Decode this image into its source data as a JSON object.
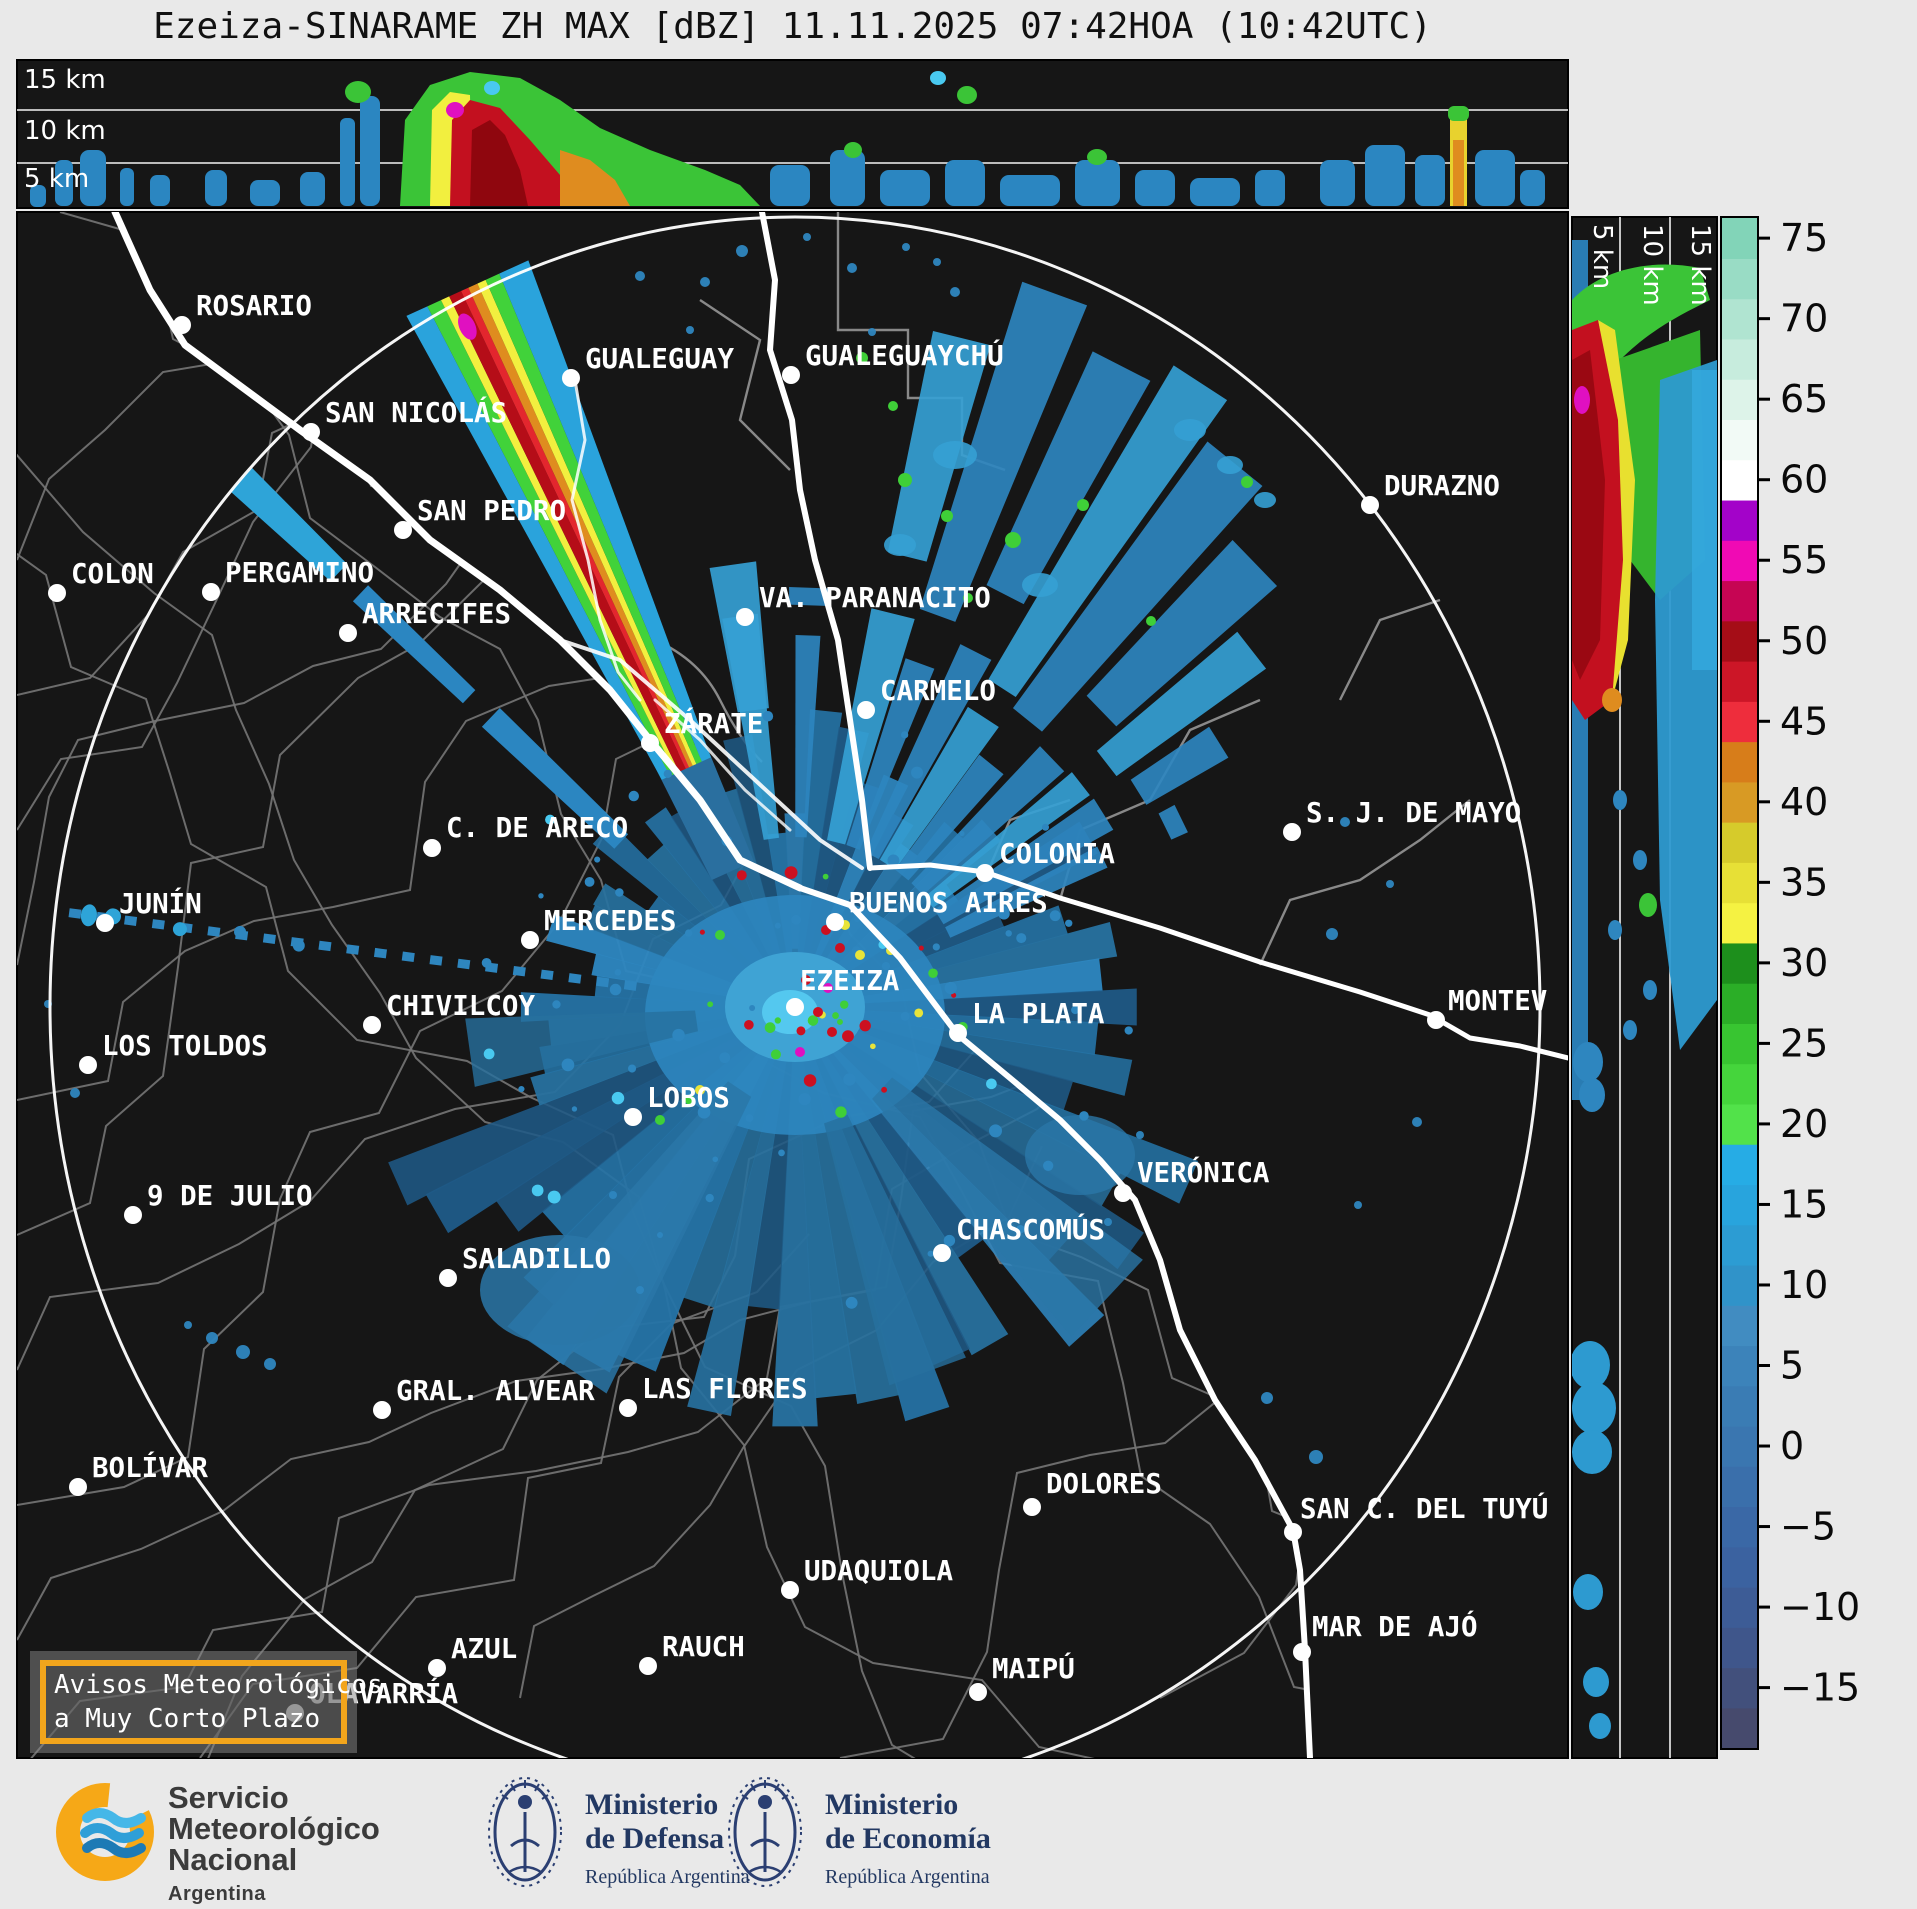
{
  "title": "Ezeiza-SINARAME ZH MAX [dBZ] 11.11.2025 07:42HOA (10:42UTC)",
  "top_panel": {
    "height_labels": [
      "15 km",
      "10 km",
      "5 km"
    ]
  },
  "right_panel": {
    "height_labels": [
      "5 km",
      "10 km",
      "15 km"
    ]
  },
  "map": {
    "radar_site": "EZEIZA",
    "cities": [
      {
        "name": "ROSARIO",
        "dot": [
          182,
          325
        ],
        "label": [
          196,
          293
        ]
      },
      {
        "name": "SAN NICOLÁS",
        "dot": [
          311,
          432
        ],
        "label": [
          325,
          400
        ]
      },
      {
        "name": "GUALEGUAY",
        "dot": [
          571,
          378
        ],
        "label": [
          585,
          346
        ]
      },
      {
        "name": "GUALEGUAYCHÚ",
        "dot": [
          791,
          375
        ],
        "label": [
          805,
          343
        ]
      },
      {
        "name": "SAN PEDRO",
        "dot": [
          403,
          530
        ],
        "label": [
          417,
          498
        ]
      },
      {
        "name": "COLON",
        "dot": [
          57,
          593
        ],
        "label": [
          71,
          561
        ]
      },
      {
        "name": "PERGAMINO",
        "dot": [
          211,
          592
        ],
        "label": [
          225,
          560
        ]
      },
      {
        "name": "ARRECIFES",
        "dot": [
          348,
          633
        ],
        "label": [
          362,
          601
        ]
      },
      {
        "name": "VA. PARANACITO",
        "dot": [
          745,
          617
        ],
        "label": [
          759,
          585
        ]
      },
      {
        "name": "DURAZNO",
        "dot": [
          1370,
          505
        ],
        "label": [
          1384,
          473
        ]
      },
      {
        "name": "CARMELO",
        "dot": [
          866,
          710
        ],
        "label": [
          880,
          678
        ]
      },
      {
        "name": "ZÁRATE",
        "dot": [
          650,
          743
        ],
        "label": [
          664,
          711
        ]
      },
      {
        "name": "C. DE ARECO",
        "dot": [
          432,
          848
        ],
        "label": [
          446,
          815
        ]
      },
      {
        "name": "JUNÍN",
        "dot": [
          105,
          923
        ],
        "label": [
          119,
          891
        ]
      },
      {
        "name": "MERCEDES",
        "dot": [
          530,
          940
        ],
        "label": [
          544,
          908
        ]
      },
      {
        "name": "CHIVILCOY",
        "dot": [
          372,
          1025
        ],
        "label": [
          386,
          993
        ]
      },
      {
        "name": "LOS TOLDOS",
        "dot": [
          88,
          1065
        ],
        "label": [
          102,
          1033
        ]
      },
      {
        "name": "COLONIA",
        "dot": [
          985,
          873
        ],
        "label": [
          999,
          841
        ]
      },
      {
        "name": "BUENOS AIRES",
        "dot": [
          835,
          922
        ],
        "label": [
          849,
          890
        ]
      },
      {
        "name": "EZEIZA",
        "dot": [
          795,
          1007
        ],
        "label": [
          800,
          968
        ]
      },
      {
        "name": "LA PLATA",
        "dot": [
          958,
          1033
        ],
        "label": [
          972,
          1001
        ]
      },
      {
        "name": "LOBOS",
        "dot": [
          633,
          1117
        ],
        "label": [
          647,
          1085
        ]
      },
      {
        "name": "S. J. DE MAYO",
        "dot": [
          1292,
          832
        ],
        "label": [
          1306,
          800
        ]
      },
      {
        "name": "MONTEV",
        "dot": [
          1436,
          1020
        ],
        "label": [
          1448,
          988
        ]
      },
      {
        "name": "VERÓNICA",
        "dot": [
          1123,
          1193
        ],
        "label": [
          1137,
          1160
        ]
      },
      {
        "name": "CHASCOMÚS",
        "dot": [
          942,
          1253
        ],
        "label": [
          956,
          1217
        ]
      },
      {
        "name": "9 DE JULIO",
        "dot": [
          133,
          1215
        ],
        "label": [
          147,
          1183
        ]
      },
      {
        "name": "SALADILLO",
        "dot": [
          448,
          1278
        ],
        "label": [
          462,
          1246
        ]
      },
      {
        "name": "GRAL. ALVEAR",
        "dot": [
          382,
          1410
        ],
        "label": [
          396,
          1378
        ]
      },
      {
        "name": "LAS FLORES",
        "dot": [
          628,
          1408
        ],
        "label": [
          642,
          1376
        ]
      },
      {
        "name": "BOLÍVAR",
        "dot": [
          78,
          1487
        ],
        "label": [
          92,
          1455
        ]
      },
      {
        "name": "DOLORES",
        "dot": [
          1032,
          1507
        ],
        "label": [
          1046,
          1471
        ]
      },
      {
        "name": "UDAQUIOLA",
        "dot": [
          790,
          1590
        ],
        "label": [
          804,
          1558
        ]
      },
      {
        "name": "AZUL",
        "dot": [
          437,
          1668
        ],
        "label": [
          451,
          1636
        ]
      },
      {
        "name": "RAUCH",
        "dot": [
          648,
          1666
        ],
        "label": [
          662,
          1634
        ]
      },
      {
        "name": "MAIPÚ",
        "dot": [
          978,
          1692
        ],
        "label": [
          992,
          1656
        ]
      },
      {
        "name": "OLAVARRÍA",
        "dot": [
          295,
          1713
        ],
        "label": [
          309,
          1681
        ]
      },
      {
        "name": "SAN C. DEL TUYÚ",
        "dot": [
          1293,
          1532
        ],
        "label": [
          1300,
          1496
        ]
      },
      {
        "name": "MAR DE AJÓ",
        "dot": [
          1302,
          1652
        ],
        "label": [
          1312,
          1614
        ]
      }
    ]
  },
  "colorbar": {
    "unit": "dBZ",
    "ticks": [
      75,
      70,
      65,
      60,
      55,
      50,
      45,
      40,
      35,
      30,
      25,
      20,
      15,
      10,
      5,
      0,
      -5,
      -10,
      -15
    ],
    "value_min": -18.75,
    "value_max": 76.25,
    "segment_dbz": 2.5,
    "colors_bottom_to_top": [
      "#464a6d",
      "#42507c",
      "#3f568b",
      "#3d5c96",
      "#3b62a0",
      "#3a68a6",
      "#3a6fab",
      "#3a76b0",
      "#3a7cb4",
      "#3c83ba",
      "#418cc1",
      "#3093c9",
      "#2c9cd3",
      "#28a4dd",
      "#26ace5",
      "#52e24a",
      "#45d53c",
      "#38c531",
      "#2bae27",
      "#1d8f1c",
      "#f5f242",
      "#e7e036",
      "#d6cb2b",
      "#d89a24",
      "#d77d1a",
      "#ee2d3c",
      "#cc1627",
      "#a50d17",
      "#c60553",
      "#f00ab4",
      "#a303c9",
      "#ffffff",
      "#f2faf6",
      "#ddf3e9",
      "#c7ecdd",
      "#b0e4d1",
      "#99dcc5",
      "#82d4b8"
    ]
  },
  "alert_box": {
    "line1": "Avisos Meteorológicos",
    "line2": "a Muy Corto Plazo",
    "border_color": "#f2a51c"
  },
  "footer": {
    "smn": {
      "line1": "Servicio",
      "line2": "Meteorológico",
      "line3": "Nacional",
      "sub": "Argentina"
    },
    "defensa": {
      "line1": "Ministerio",
      "line2": "de Defensa",
      "sub": "República Argentina"
    },
    "economia": {
      "line1": "Ministerio",
      "line2": "de Economía",
      "sub": "República Argentina"
    }
  },
  "colors": {
    "accent_orange": "#f2a51c",
    "panel_background": "#161616",
    "echo_blue": "#2e86bf",
    "echo_green": "#3fcf38",
    "echo_yellow": "#f2ef3f",
    "echo_red": "#c3101f",
    "navy": "#223862"
  }
}
